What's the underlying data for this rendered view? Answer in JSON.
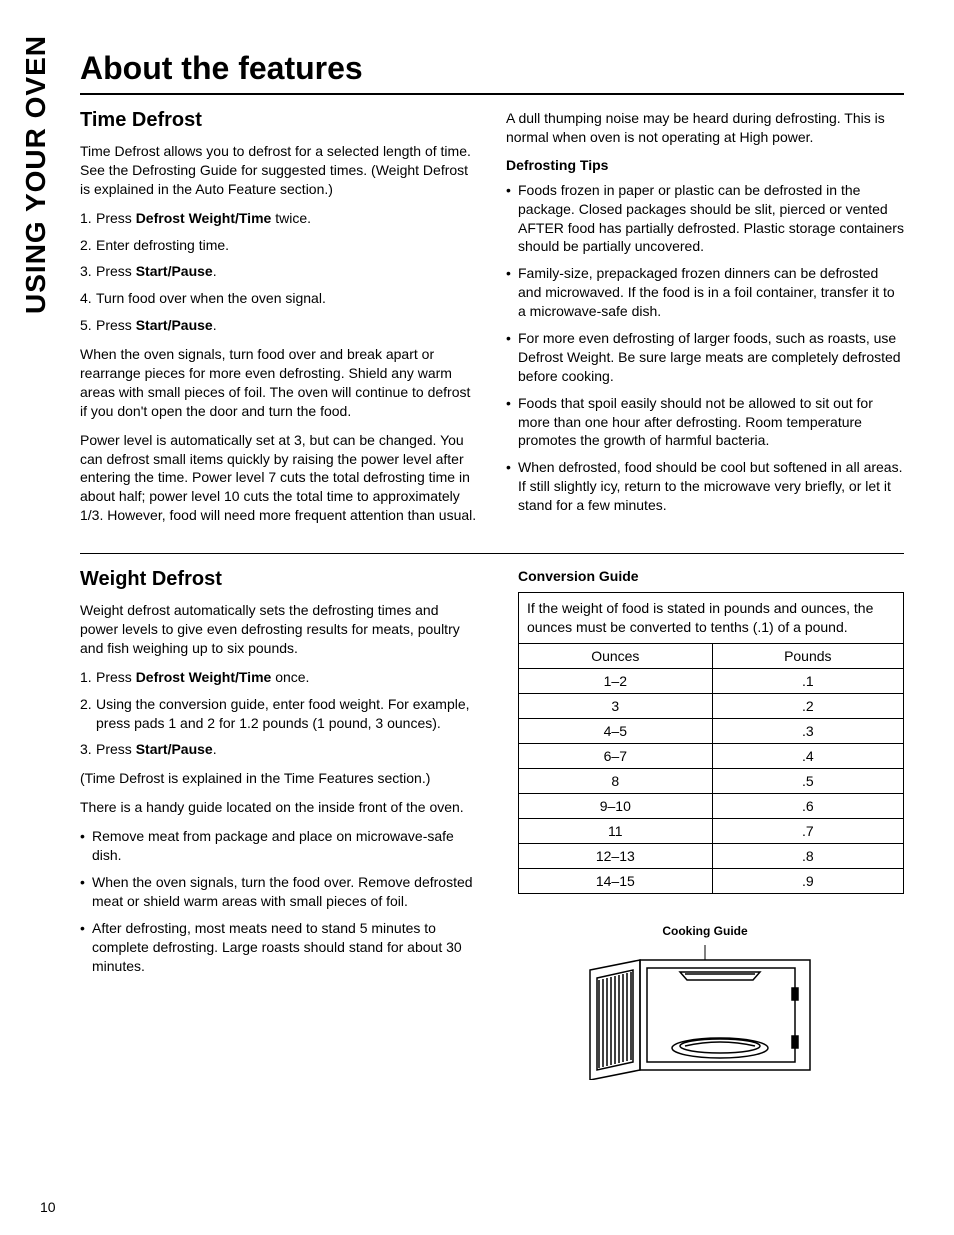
{
  "side_label": "USING YOUR OVEN",
  "page_title": "About the features",
  "page_number": "10",
  "time_defrost": {
    "heading": "Time Defrost",
    "intro": "Time Defrost allows you to defrost for a selected length of time. See the Defrosting Guide for suggested times. (Weight Defrost is explained in the Auto Feature section.)",
    "steps": [
      {
        "pre": "Press ",
        "bold": "Defrost Weight/Time",
        "post": " twice."
      },
      {
        "pre": "Enter defrosting time.",
        "bold": "",
        "post": ""
      },
      {
        "pre": "Press ",
        "bold": "Start/Pause",
        "post": "."
      },
      {
        "pre": "Turn food over when the oven signal.",
        "bold": "",
        "post": ""
      },
      {
        "pre": "Press ",
        "bold": "Start/Pause",
        "post": "."
      }
    ],
    "para1": "When the oven signals, turn food over and break apart or rearrange pieces for more even defrosting. Shield any warm areas with small pieces of foil. The oven will continue to defrost if you don't open the door and turn the food.",
    "para2": "Power level is automatically set at 3, but can be changed. You can defrost small items quickly by raising the power level after entering the time. Power level 7 cuts the total defrosting time in about half; power level 10 cuts the total time to approximately 1/3. However, food will need more frequent attention than usual.",
    "rcol_para": "A dull thumping noise may be heard during defrosting. This is normal when oven is not operating at High power.",
    "tips_heading": "Defrosting Tips",
    "tips": [
      "Foods frozen in paper or plastic can be defrosted in the package. Closed packages should be slit, pierced or vented AFTER food has partially defrosted. Plastic storage containers should be partially uncovered.",
      "Family-size, prepackaged frozen dinners can be defrosted and microwaved. If the food is in a foil container, transfer it to a microwave-safe dish.",
      "For more even defrosting of larger foods, such as roasts, use Defrost Weight. Be sure large meats are completely defrosted before cooking.",
      "Foods that spoil easily should not be allowed to sit out for more than one hour after defrosting. Room temperature promotes the growth of harmful bacteria.",
      "When defrosted, food should be cool but softened in all areas. If still slightly icy, return to the microwave very briefly, or let it stand  for a few minutes."
    ]
  },
  "weight_defrost": {
    "heading": "Weight Defrost",
    "intro": "Weight defrost automatically sets the defrosting times and power levels to give even defrosting results for meats, poultry and fish weighing up to six pounds.",
    "steps": [
      {
        "pre": "Press ",
        "bold": "Defrost Weight/Time",
        "post": " once."
      },
      {
        "pre": "Using the conversion guide, enter food weight. For example, press pads 1 and 2 for 1.2 pounds (1 pound, 3 ounces).",
        "bold": "",
        "post": ""
      },
      {
        "pre": "Press ",
        "bold": "Start/Pause",
        "post": "."
      }
    ],
    "note": "(Time Defrost is explained in the Time Features section.)",
    "guide_note": "There is a handy guide located on the inside front of the oven.",
    "bullets": [
      "Remove meat from package and place on microwave-safe dish.",
      "When the oven signals, turn the food over. Remove defrosted meat or shield warm areas with small pieces of foil.",
      "After defrosting, most meats need to stand 5 minutes to complete defrosting. Large roasts should stand for about 30 minutes."
    ],
    "conv_heading": "Conversion Guide",
    "conv_caption": "If the weight of food is stated in pounds and ounces, the ounces must be converted to tenths (.1) of a pound.",
    "conv_headers": [
      "Ounces",
      "Pounds"
    ],
    "conv_rows": [
      [
        "1–2",
        ".1"
      ],
      [
        "3",
        ".2"
      ],
      [
        "4–5",
        ".3"
      ],
      [
        "6–7",
        ".4"
      ],
      [
        "8",
        ".5"
      ],
      [
        "9–10",
        ".6"
      ],
      [
        "11",
        ".7"
      ],
      [
        "12–13",
        ".8"
      ],
      [
        "14–15",
        ".9"
      ]
    ],
    "diagram_label": "Cooking Guide"
  }
}
